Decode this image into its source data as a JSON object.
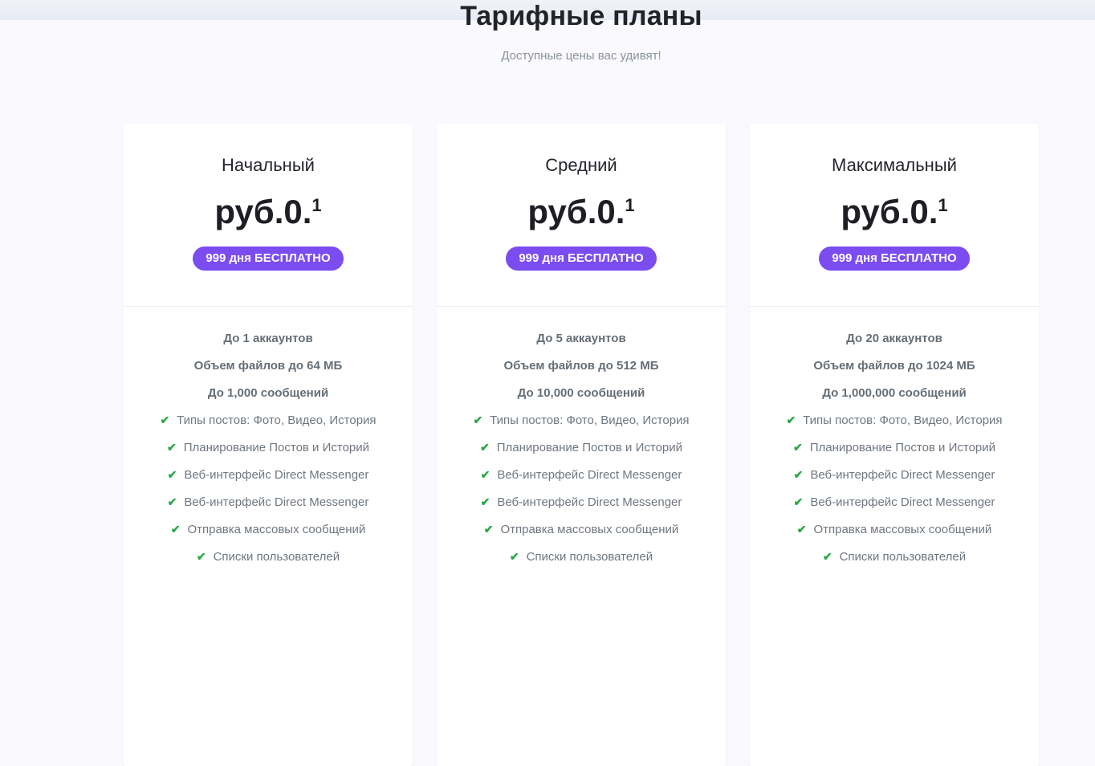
{
  "page": {
    "title": "Тарифные планы",
    "subtitle": "Доступные цены вас удивят!"
  },
  "colors": {
    "page_background": "#f9f9fe",
    "card_background": "#ffffff",
    "badge_background": "#7b4cf0",
    "badge_text": "#ffffff",
    "check_green": "#28a745",
    "title_text": "#222329",
    "feature_text": "#6f7780"
  },
  "icons": {
    "check": "✔"
  },
  "plans": [
    {
      "name": "Начальный",
      "price_main": "руб.0.",
      "price_sup": "1",
      "badge": "999 дня БЕСПЛАТНО",
      "limits": [
        "До 1 аккаунтов",
        "Объем файлов до 64 МБ",
        "До 1,000 сообщений"
      ],
      "features": [
        "Типы постов: Фото, Видео, История",
        "Планирование Постов и Историй",
        "Веб-интерфейс Direct Messenger",
        "Веб-интерфейс Direct Messenger",
        "Отправка массовых сообщений",
        "Списки пользователей"
      ]
    },
    {
      "name": "Средний",
      "price_main": "руб.0.",
      "price_sup": "1",
      "badge": "999 дня БЕСПЛАТНО",
      "limits": [
        "До 5 аккаунтов",
        "Объем файлов до 512 МБ",
        "До 10,000 сообщений"
      ],
      "features": [
        "Типы постов: Фото, Видео, История",
        "Планирование Постов и Историй",
        "Веб-интерфейс Direct Messenger",
        "Веб-интерфейс Direct Messenger",
        "Отправка массовых сообщений",
        "Списки пользователей"
      ]
    },
    {
      "name": "Максимальный",
      "price_main": "руб.0.",
      "price_sup": "1",
      "badge": "999 дня БЕСПЛАТНО",
      "limits": [
        "До 20 аккаунтов",
        "Объем файлов до 1024 МБ",
        "До 1,000,000 сообщений"
      ],
      "features": [
        "Типы постов: Фото, Видео, История",
        "Планирование Постов и Историй",
        "Веб-интерфейс Direct Messenger",
        "Веб-интерфейс Direct Messenger",
        "Отправка массовых сообщений",
        "Списки пользователей"
      ]
    }
  ]
}
